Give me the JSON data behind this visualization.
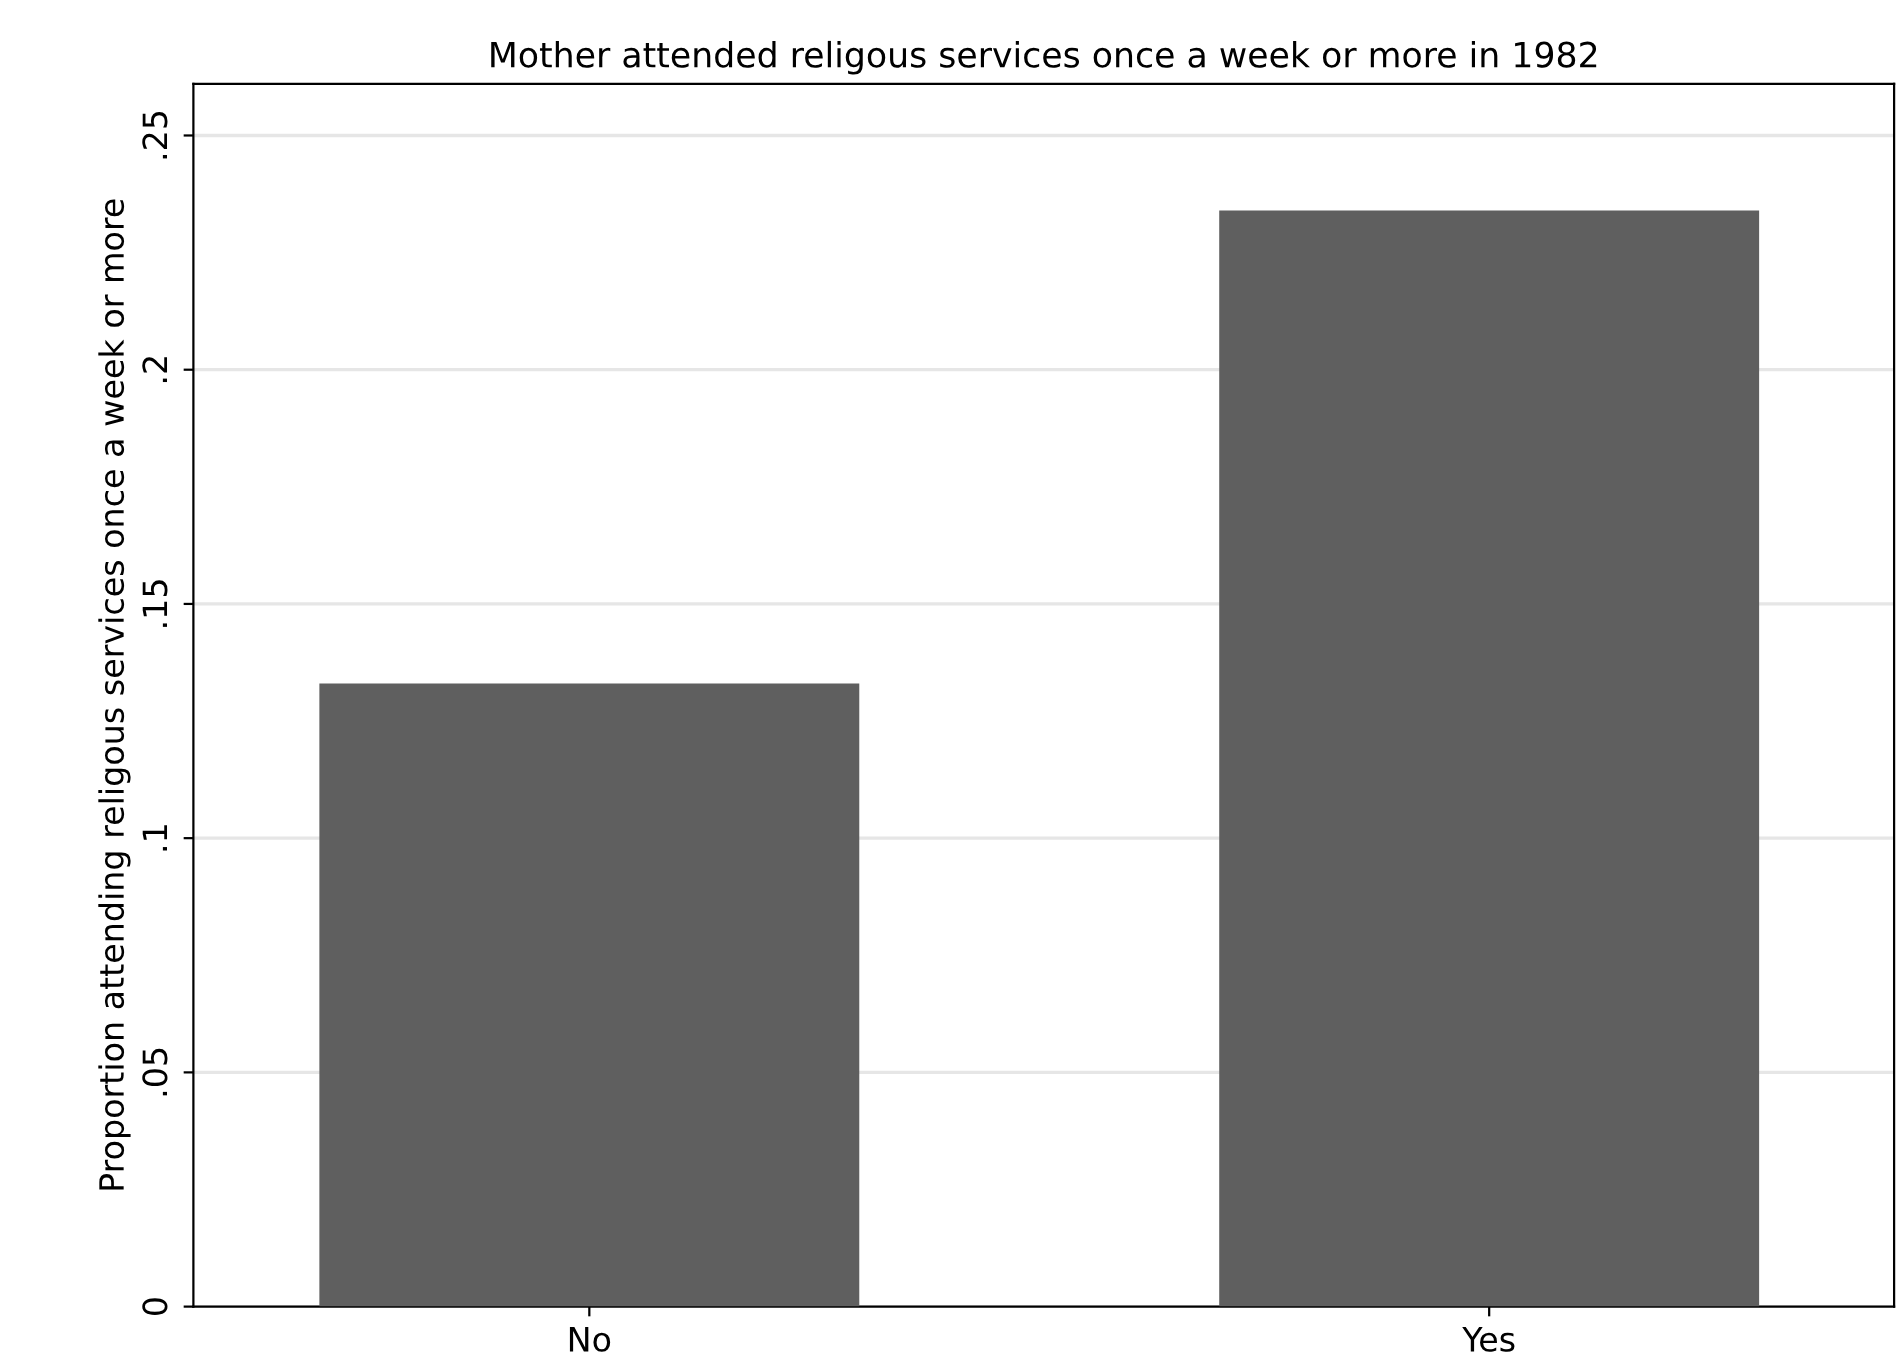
{
  "chart_data": {
    "type": "bar",
    "title": "Mother attended religous services once a week or more in 1982",
    "ylabel": "Proportion attending religous services once a week or more",
    "categories": [
      "No",
      "Yes"
    ],
    "values": [
      0.133,
      0.234
    ],
    "color": "#5f5f5f",
    "ylim": [
      0,
      0.261
    ],
    "yticks": [
      0,
      {
        "value": 0.05,
        "label": ".05"
      },
      {
        "value": 0.1,
        "label": ".1"
      },
      {
        "value": 0.15,
        "label": ".15"
      },
      {
        "value": 0.2,
        "label": ".2"
      },
      {
        "value": 0.25,
        "label": ".25"
      }
    ],
    "grid": "y",
    "legend": false
  }
}
